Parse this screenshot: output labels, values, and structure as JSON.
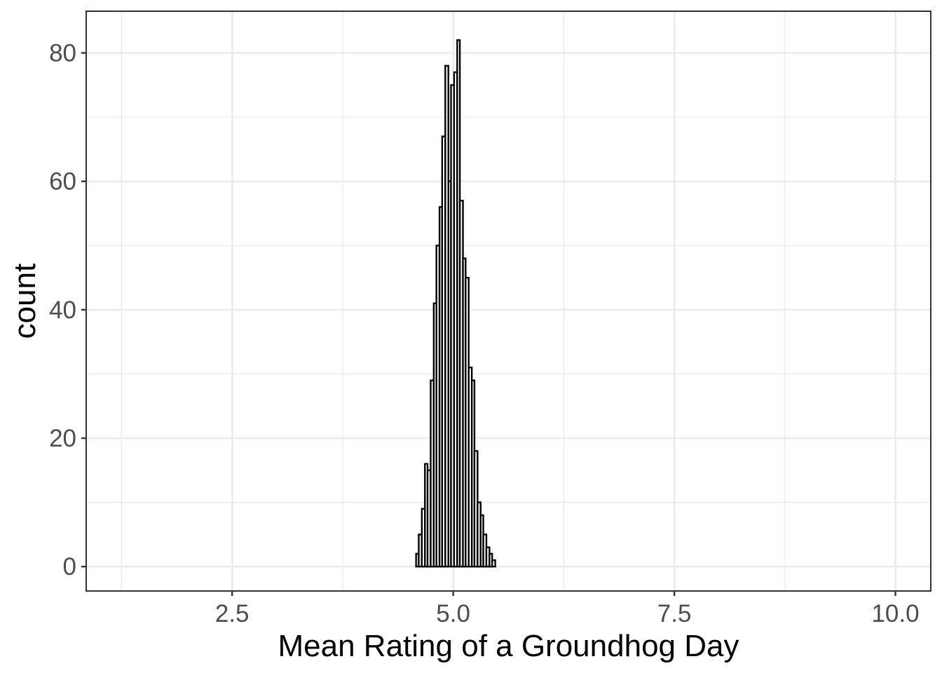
{
  "chart_data": {
    "type": "histogram",
    "title": "",
    "xlabel": "Mean Rating of a Groundhog Day",
    "ylabel": "count",
    "xlim": [
      0.85,
      10.4
    ],
    "ylim": [
      -3.8,
      86.5
    ],
    "x_ticks": [
      2.5,
      5.0,
      7.5,
      10.0
    ],
    "x_tick_labels": [
      "2.5",
      "5.0",
      "7.5",
      "10.0"
    ],
    "x_minor_ticks": [
      1.25,
      3.75,
      6.25,
      8.75
    ],
    "y_ticks": [
      0,
      20,
      40,
      60,
      80
    ],
    "y_tick_labels": [
      "0",
      "20",
      "40",
      "60",
      "80"
    ],
    "y_minor_ticks": [
      10,
      30,
      50,
      70
    ],
    "grid": true,
    "theme": "bw",
    "bar_fill": "#ffffff",
    "bar_outline": "#000000",
    "bins": [
      {
        "x0": 4.58,
        "x1": 4.61,
        "count": 2
      },
      {
        "x0": 4.61,
        "x1": 4.645,
        "count": 5
      },
      {
        "x0": 4.645,
        "x1": 4.68,
        "count": 9
      },
      {
        "x0": 4.68,
        "x1": 4.71,
        "count": 16
      },
      {
        "x0": 4.71,
        "x1": 4.745,
        "count": 15
      },
      {
        "x0": 4.745,
        "x1": 4.78,
        "count": 29
      },
      {
        "x0": 4.78,
        "x1": 4.81,
        "count": 41
      },
      {
        "x0": 4.81,
        "x1": 4.845,
        "count": 50
      },
      {
        "x0": 4.845,
        "x1": 4.875,
        "count": 56
      },
      {
        "x0": 4.875,
        "x1": 4.91,
        "count": 67
      },
      {
        "x0": 4.91,
        "x1": 4.945,
        "count": 78
      },
      {
        "x0": 4.945,
        "x1": 4.975,
        "count": 60
      },
      {
        "x0": 4.975,
        "x1": 5.01,
        "count": 75
      },
      {
        "x0": 5.01,
        "x1": 5.045,
        "count": 77
      },
      {
        "x0": 5.045,
        "x1": 5.075,
        "count": 82
      },
      {
        "x0": 5.075,
        "x1": 5.11,
        "count": 57
      },
      {
        "x0": 5.11,
        "x1": 5.14,
        "count": 48
      },
      {
        "x0": 5.14,
        "x1": 5.175,
        "count": 45
      },
      {
        "x0": 5.175,
        "x1": 5.21,
        "count": 31
      },
      {
        "x0": 5.21,
        "x1": 5.24,
        "count": 29
      },
      {
        "x0": 5.24,
        "x1": 5.275,
        "count": 18
      },
      {
        "x0": 5.275,
        "x1": 5.31,
        "count": 10
      },
      {
        "x0": 5.31,
        "x1": 5.34,
        "count": 8
      },
      {
        "x0": 5.34,
        "x1": 5.375,
        "count": 5
      },
      {
        "x0": 5.375,
        "x1": 5.41,
        "count": 3
      },
      {
        "x0": 5.41,
        "x1": 5.44,
        "count": 2
      },
      {
        "x0": 5.44,
        "x1": 5.475,
        "count": 1
      }
    ]
  }
}
